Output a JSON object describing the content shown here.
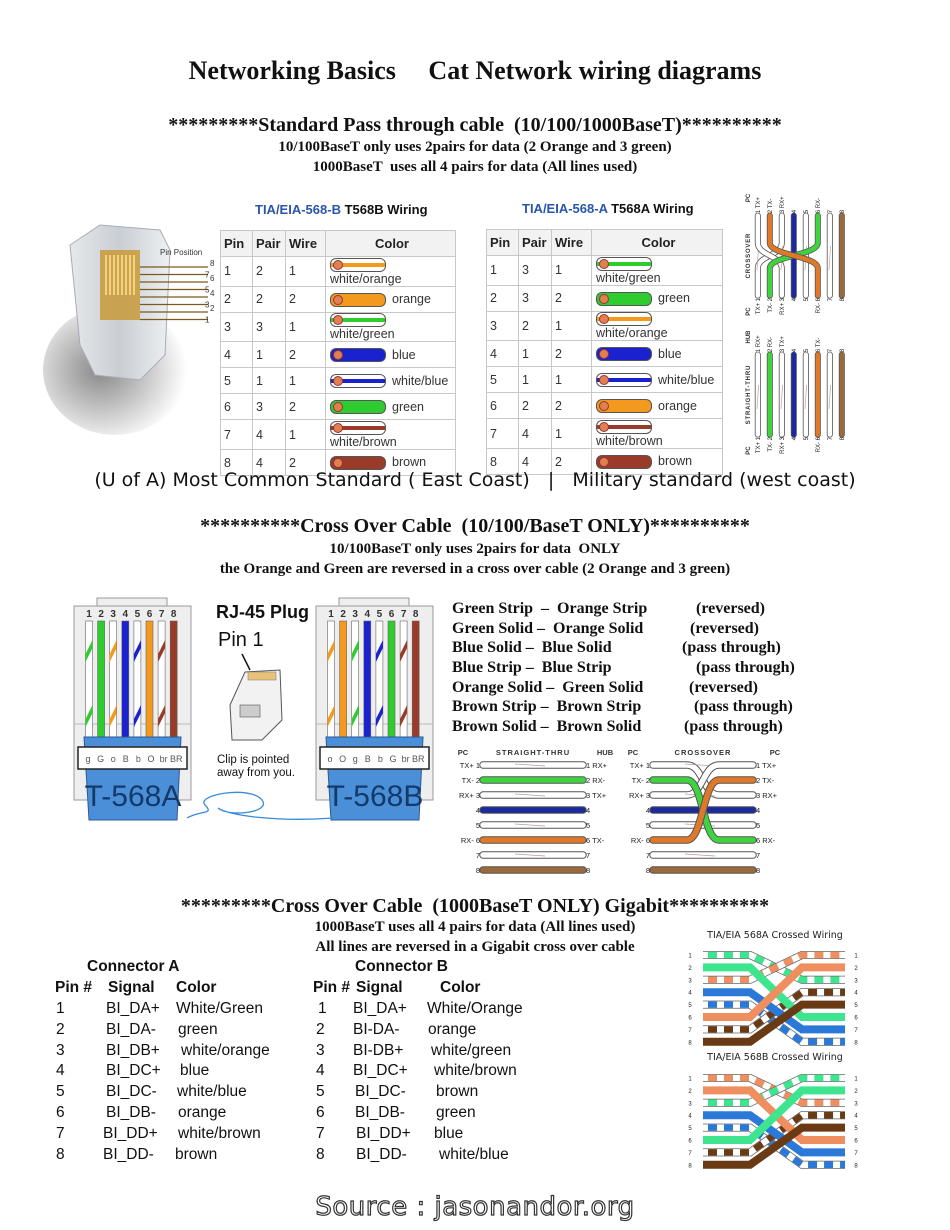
{
  "title": {
    "left": "Networking Basics",
    "right": "Cat Network wiring diagrams"
  },
  "section1": {
    "header": "*********Standard Pass through cable  (10/100/1000BaseT)**********",
    "line1": "10/100BaseT only uses 2pairs for data (2 Orange and 3 green)",
    "line2": "1000BaseT  uses all 4 pairs for data (All lines used)"
  },
  "connector": {
    "pin_position_label": "Pin Position",
    "pins": [
      "8",
      "7",
      "6",
      "5",
      "4",
      "3",
      "2",
      "1"
    ]
  },
  "wire_colors": {
    "o": "#f39a1e",
    "g": "#2fcc2f",
    "b": "#1a22d0",
    "br": "#9a3a28",
    "white": "#ffffff"
  },
  "diagram_colors": {
    "o": "#e0782a",
    "g": "#3fd43f",
    "b": "#1b2a9c",
    "br": "#9a6a3c"
  },
  "crossed_colors": {
    "o": "#ef8e5e",
    "g": "#3ee58f",
    "b": "#2a78d8",
    "br": "#6a3a14"
  },
  "table_b": {
    "title_prefix": "TIA/EIA-568-B",
    "title_suffix": "T568B Wiring",
    "headers": [
      "Pin",
      "Pair",
      "Wire",
      "Color"
    ],
    "rows": [
      {
        "pin": "1",
        "pair": "2",
        "wire": "1",
        "color": "white/orange",
        "code": "wo"
      },
      {
        "pin": "2",
        "pair": "2",
        "wire": "2",
        "color": "orange",
        "code": "o"
      },
      {
        "pin": "3",
        "pair": "3",
        "wire": "1",
        "color": "white/green",
        "code": "wg"
      },
      {
        "pin": "4",
        "pair": "1",
        "wire": "2",
        "color": "blue",
        "code": "b"
      },
      {
        "pin": "5",
        "pair": "1",
        "wire": "1",
        "color": "white/blue",
        "code": "wb"
      },
      {
        "pin": "6",
        "pair": "3",
        "wire": "2",
        "color": "green",
        "code": "g"
      },
      {
        "pin": "7",
        "pair": "4",
        "wire": "1",
        "color": "white/brown",
        "code": "wbr"
      },
      {
        "pin": "8",
        "pair": "4",
        "wire": "2",
        "color": "brown",
        "code": "br"
      }
    ]
  },
  "table_a": {
    "title_prefix": "TIA/EIA-568-A",
    "title_suffix": "T568A Wiring",
    "headers": [
      "Pin",
      "Pair",
      "Wire",
      "Color"
    ],
    "rows": [
      {
        "pin": "1",
        "pair": "3",
        "wire": "1",
        "color": "white/green",
        "code": "wg"
      },
      {
        "pin": "2",
        "pair": "3",
        "wire": "2",
        "color": "green",
        "code": "g"
      },
      {
        "pin": "3",
        "pair": "2",
        "wire": "1",
        "color": "white/orange",
        "code": "wo"
      },
      {
        "pin": "4",
        "pair": "1",
        "wire": "2",
        "color": "blue",
        "code": "b"
      },
      {
        "pin": "5",
        "pair": "1",
        "wire": "1",
        "color": "white/blue",
        "code": "wb"
      },
      {
        "pin": "6",
        "pair": "2",
        "wire": "2",
        "color": "orange",
        "code": "o"
      },
      {
        "pin": "7",
        "pair": "4",
        "wire": "1",
        "color": "white/brown",
        "code": "wbr"
      },
      {
        "pin": "8",
        "pair": "4",
        "wire": "2",
        "color": "brown",
        "code": "br"
      }
    ]
  },
  "caption": "(U of A) Most Common Standard ( East Coast)   |   Military standard (west coast)",
  "section2": {
    "header": "**********Cross Over Cable  (10/100/BaseT ONLY)**********",
    "line1": "10/100BaseT only uses 2pairs for data  ONLY",
    "line2": "the Orange and Green are reversed in a cross over cable (2 Orange and 3 green)"
  },
  "plugs": {
    "rj45_title": "RJ-45 Plug",
    "pin1_label": "Pin 1",
    "clip_line1": "Clip is pointed",
    "clip_line2": "away from you.",
    "numbers": [
      "1",
      "2",
      "3",
      "4",
      "5",
      "6",
      "7",
      "8"
    ],
    "a": {
      "label": "T-568A",
      "codes": [
        "g",
        "G",
        "o",
        "B",
        "b",
        "O",
        "br",
        "BR"
      ],
      "wires": [
        "wg",
        "g",
        "wo",
        "b",
        "wb",
        "o",
        "wbr",
        "br"
      ]
    },
    "b": {
      "label": "T-568B",
      "codes": [
        "o",
        "O",
        "g",
        "B",
        "b",
        "G",
        "br",
        "BR"
      ],
      "wires": [
        "wo",
        "o",
        "wg",
        "b",
        "wb",
        "g",
        "wbr",
        "br"
      ]
    }
  },
  "crossover_list": [
    {
      "left": "Green Strip  –  Orange Strip",
      "right": "(reversed)"
    },
    {
      "left": "Green Solid –  Orange Solid",
      "right": "(reversed)"
    },
    {
      "left": "Blue Solid –  Blue Solid",
      "right": "(pass through)"
    },
    {
      "left": "Blue Strip –  Blue Strip",
      "right": "(pass through)"
    },
    {
      "left": "Orange Solid –  Green Solid",
      "right": "(reversed)"
    },
    {
      "left": "Brown Strip –  Brown Strip",
      "right": "(pass through)"
    },
    {
      "left": "Brown Solid –  Brown Solid",
      "right": "(pass through)"
    }
  ],
  "pair_diagrams": {
    "straight": {
      "title": "STRAIGHT-THRU",
      "left_header": "PC",
      "right_header": "HUB",
      "left_pins": [
        "TX+ 1",
        "TX- 2",
        "RX+ 3",
        "4",
        "5",
        "RX- 6",
        "7",
        "8"
      ],
      "right_pins": [
        "1 RX+",
        "2 RX-",
        "3 TX+",
        "4",
        "5",
        "6 TX-",
        "7",
        "8"
      ],
      "wires": [
        "w",
        "g",
        "w",
        "b",
        "w",
        "o",
        "w",
        "br"
      ]
    },
    "crossover": {
      "title": "CROSSOVER",
      "left_header": "PC",
      "right_header": "PC",
      "left_pins": [
        "TX+ 1",
        "TX- 2",
        "RX+ 3",
        "4",
        "5",
        "RX- 6",
        "7",
        "8"
      ],
      "right_pins": [
        "1 TX+",
        "2 TX-",
        "3 RX+",
        "4",
        "5",
        "6 RX-",
        "7",
        "8"
      ],
      "wires": [
        "w",
        "g",
        "w",
        "b",
        "w",
        "o",
        "w",
        "br"
      ]
    }
  },
  "section3": {
    "header": "*********Cross Over Cable  (1000BaseT ONLY) Gigabit**********",
    "line1": "1000BaseT  uses all 4 pairs for data (All lines used)",
    "line2": "All lines are reversed in a Gigabit cross over cable"
  },
  "connector_a": {
    "title": "Connector A",
    "headers": [
      "Pin #",
      "Signal",
      "Color"
    ],
    "rows": [
      [
        "1",
        "BI_DA+",
        "White/Green"
      ],
      [
        "2",
        "BI_DA-",
        "green"
      ],
      [
        "3",
        "BI_DB+",
        "white/orange"
      ],
      [
        "4",
        "BI_DC+",
        "blue"
      ],
      [
        "5",
        "BI_DC-",
        "white/blue"
      ],
      [
        "6",
        "BI_DB-",
        "orange"
      ],
      [
        "7",
        "BI_DD+",
        "white/brown"
      ],
      [
        "8",
        "BI_DD-",
        "brown"
      ]
    ]
  },
  "connector_b": {
    "title": "Connector B",
    "headers": [
      "Pin #",
      "Signal",
      "Color"
    ],
    "rows": [
      [
        "1",
        "BI_DA+",
        "White/Orange"
      ],
      [
        "2",
        "BI-DA-",
        "orange"
      ],
      [
        "3",
        "BI-DB+",
        "white/green"
      ],
      [
        "4",
        "BI_DC+",
        "white/brown"
      ],
      [
        "5",
        "BI_DC-",
        "brown"
      ],
      [
        "6",
        "BI_DB-",
        "green"
      ],
      [
        "7",
        "BI_DD+",
        "blue"
      ],
      [
        "8",
        "BI_DD-",
        "white/blue"
      ]
    ]
  },
  "crossed_wiring": {
    "a": {
      "title": "TIA/EIA 568A Crossed Wiring",
      "left": [
        "wg",
        "g",
        "wo",
        "b",
        "wb",
        "o",
        "wbr",
        "br"
      ],
      "right": [
        "wo",
        "o",
        "wg",
        "wbr",
        "br",
        "g",
        "b",
        "wb"
      ]
    },
    "b": {
      "title": "TIA/EIA 568B Crossed Wiring",
      "left": [
        "wo",
        "o",
        "wg",
        "b",
        "wb",
        "g",
        "wbr",
        "br"
      ],
      "right": [
        "wg",
        "g",
        "wo",
        "wbr",
        "br",
        "o",
        "b",
        "wb"
      ]
    },
    "numbers": [
      "1",
      "2",
      "3",
      "4",
      "5",
      "6",
      "7",
      "8"
    ]
  },
  "source": "Source : jasonandor.org"
}
